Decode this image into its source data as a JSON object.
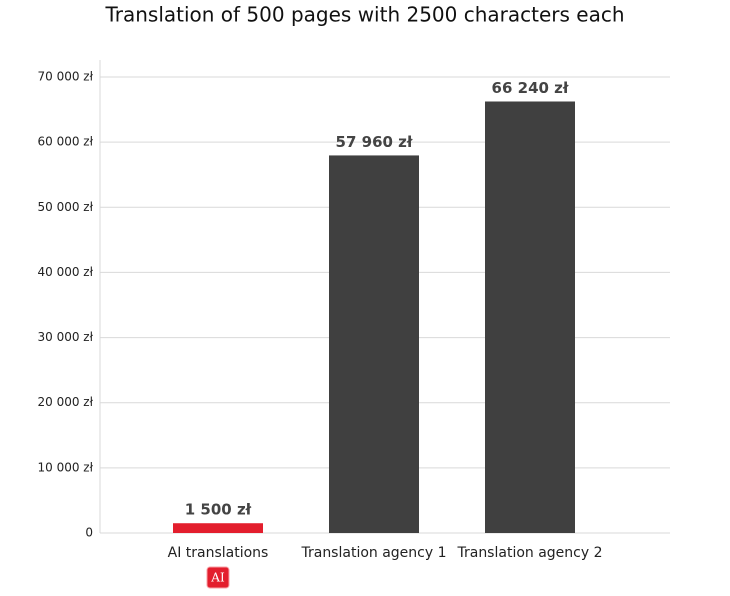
{
  "chart_data": {
    "type": "bar",
    "title": "Translation of 500 pages with 2500 characters each",
    "categories": [
      "AI translations",
      "Translation agency 1",
      "Translation agency 2"
    ],
    "values": [
      1500,
      57960,
      66240
    ],
    "value_labels": [
      "1 500 zł",
      "57 960 zł",
      "66 240 zł"
    ],
    "colors": [
      "#e31e2d",
      "#404040",
      "#404040"
    ],
    "badge": "AI",
    "ylim": [
      0,
      70000
    ],
    "yticks": [
      0,
      {
        "value": 10000,
        "label": "10 000 zł"
      },
      {
        "value": 20000,
        "label": "20 000 zł"
      },
      {
        "value": 30000,
        "label": "30 000 zł"
      },
      {
        "value": 40000,
        "label": "40 000 zł"
      },
      {
        "value": 50000,
        "label": "50 000 zł"
      },
      {
        "value": 60000,
        "label": "60 000 zł"
      },
      {
        "value": 70000,
        "label": "70 000 zł"
      }
    ],
    "grid": true
  }
}
